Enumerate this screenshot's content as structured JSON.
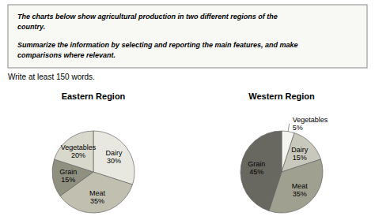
{
  "chart_data": [
    {
      "type": "pie",
      "title": "Eastern Region",
      "annotations": [
        "The charts below show agricultural production in two different regions of the",
        "country.",
        "Summarize the information by selecting and reporting the main features, and make",
        "comparisons where relevant.",
        "Write at least 150 words."
      ],
      "categories": [
        "Dairy",
        "Meat",
        "Grain",
        "Vegetables"
      ],
      "values": [
        30,
        35,
        15,
        20
      ],
      "value_labels": [
        "30%",
        "35%",
        "15%",
        "20%"
      ],
      "colors": [
        "#e8e8e0",
        "#c0bfb0",
        "#909080",
        "#d8d8cc"
      ],
      "data_labels": true
    },
    {
      "type": "pie",
      "title": "Western Region",
      "categories": [
        "Vegetables",
        "Dairy",
        "Meat",
        "Grain"
      ],
      "values": [
        5,
        15,
        35,
        45
      ],
      "value_labels": [
        "5%",
        "15%",
        "35%",
        "45%"
      ],
      "colors": [
        "#f5f5ef",
        "#c8c8bc",
        "#a0a090",
        "#686860"
      ],
      "data_labels": true
    }
  ]
}
